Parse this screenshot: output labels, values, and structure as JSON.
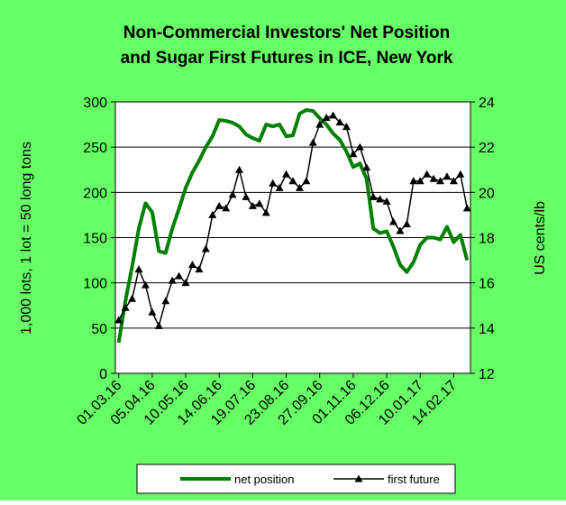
{
  "chart_data": {
    "type": "line",
    "title": "Non-Commercial Investors' Net Position",
    "subtitle": "and Sugar First Futures in ICE, New York",
    "y_label": "1,000 lots, 1 lot = 50 long tons",
    "y2_label": "US cents/lb",
    "background": "#66ff66",
    "legend": "bottom",
    "grid": true,
    "categories": [
      "01.03.16",
      null,
      null,
      null,
      null,
      "05.04.16",
      null,
      null,
      null,
      null,
      "10.05.16",
      null,
      null,
      null,
      null,
      "14.06.16",
      null,
      null,
      null,
      null,
      "19.07.16",
      null,
      null,
      null,
      null,
      "23.08.16",
      null,
      null,
      null,
      null,
      "27.09.16",
      null,
      null,
      null,
      null,
      "01.11.16",
      null,
      null,
      null,
      null,
      "06.12.16",
      null,
      null,
      null,
      null,
      "10.01.17",
      null,
      null,
      null,
      null,
      "14.02.17",
      null,
      null
    ],
    "ylim": [
      0,
      300
    ],
    "yticks": [
      0,
      50,
      100,
      150,
      200,
      250,
      300
    ],
    "y2lim": [
      12,
      24
    ],
    "y2ticks": [
      12,
      14,
      16,
      18,
      20,
      22,
      24
    ],
    "series": [
      {
        "name": "net position",
        "color": "#008000",
        "values": [
          34,
          80,
          118,
          160,
          188,
          178,
          135,
          133,
          160,
          182,
          205,
          222,
          235,
          250,
          262,
          280,
          279,
          277,
          273,
          264,
          260,
          257,
          275,
          273,
          275,
          262,
          263,
          287,
          291,
          290,
          282,
          275,
          265,
          258,
          245,
          228,
          232,
          215,
          160,
          155,
          157,
          140,
          120,
          112,
          123,
          142,
          150,
          150,
          148,
          162,
          145,
          153,
          125
        ]
      },
      {
        "name": "first future",
        "color": "#000000",
        "axis": "y2",
        "marker": "triangle",
        "values": [
          14.35,
          14.9,
          15.3,
          16.6,
          15.9,
          14.7,
          14.1,
          15.2,
          16.1,
          16.3,
          16.0,
          16.8,
          16.6,
          17.5,
          19.0,
          19.4,
          19.3,
          19.9,
          21.0,
          19.8,
          19.4,
          19.5,
          19.1,
          20.4,
          20.2,
          20.8,
          20.5,
          20.2,
          20.5,
          22.2,
          23.0,
          23.3,
          23.4,
          23.1,
          22.9,
          21.7,
          22.0,
          21.1,
          19.8,
          19.7,
          19.6,
          18.7,
          18.3,
          18.6,
          20.5,
          20.5,
          20.8,
          20.6,
          20.5,
          20.7,
          20.5,
          20.8,
          19.3
        ]
      }
    ]
  }
}
